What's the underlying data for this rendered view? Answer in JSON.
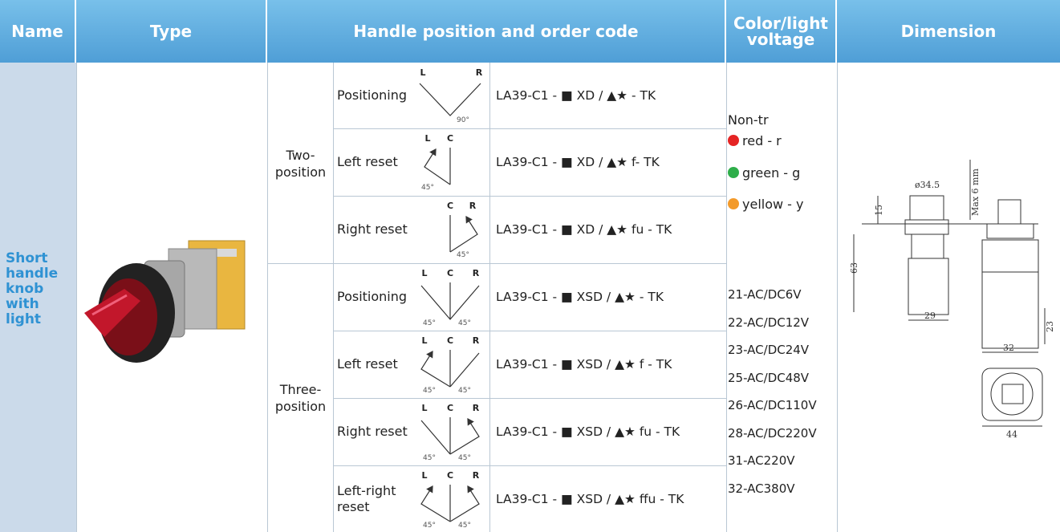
{
  "header": {
    "name": "Name",
    "type": "Type",
    "handle": "Handle position and order code",
    "color": "Color/light voltage",
    "dimension": "Dimension"
  },
  "product": {
    "name": "Short handle knob with light"
  },
  "groups": [
    {
      "label": "Two-position",
      "rows": [
        {
          "mode": "Positioning",
          "marks": [
            "L",
            "R"
          ],
          "angles": [
            "90°"
          ],
          "code": "LA39-C1 - ■ XD / ▲★ - TK"
        },
        {
          "mode": "Left reset",
          "marks": [
            "L",
            "C"
          ],
          "angles": [
            "45°"
          ],
          "code": "LA39-C1 - ■ XD / ▲★ f- TK"
        },
        {
          "mode": "Right reset",
          "marks": [
            "C",
            "R"
          ],
          "angles": [
            "45°"
          ],
          "code": "LA39-C1 - ■ XD / ▲★ fu - TK"
        }
      ]
    },
    {
      "label": "Three-position",
      "rows": [
        {
          "mode": "Positioning",
          "marks": [
            "L",
            "C",
            "R"
          ],
          "angles": [
            "45°",
            "45°"
          ],
          "code": "LA39-C1 - ■ XSD / ▲★ - TK"
        },
        {
          "mode": "Left reset",
          "marks": [
            "L",
            "C",
            "R"
          ],
          "angles": [
            "45°",
            "45°"
          ],
          "code": "LA39-C1 - ■ XSD / ▲★ f - TK"
        },
        {
          "mode": "Right reset",
          "marks": [
            "L",
            "C",
            "R"
          ],
          "angles": [
            "45°",
            "45°"
          ],
          "code": "LA39-C1 - ■ XSD / ▲★ fu - TK"
        },
        {
          "mode": "Left-right reset",
          "marks": [
            "L",
            "C",
            "R"
          ],
          "angles": [
            "45°",
            "45°"
          ],
          "code": "LA39-C1 - ■ XSD / ▲★ ffu - TK"
        }
      ]
    }
  ],
  "color": {
    "note": "Non-tr",
    "options": [
      "red  - r",
      "green  - g",
      "yellow  - y"
    ],
    "voltages": [
      "21-AC/DC6V",
      "22-AC/DC12V",
      "23-AC/DC24V",
      "25-AC/DC48V",
      "26-AC/DC110V",
      "28-AC/DC220V",
      "31-AC220V",
      "32-AC380V"
    ]
  },
  "dimension": {
    "labels": [
      "ø34.5",
      "15",
      "Max 6 mm",
      "63",
      "29",
      "23",
      "32",
      "44"
    ]
  }
}
